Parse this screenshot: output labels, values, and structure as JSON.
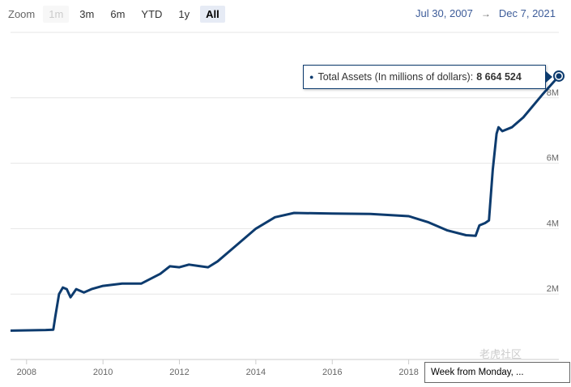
{
  "toolbar": {
    "zoom_label": "Zoom",
    "buttons": [
      {
        "label": "1m",
        "state": "disabled"
      },
      {
        "label": "3m",
        "state": "normal"
      },
      {
        "label": "6m",
        "state": "normal"
      },
      {
        "label": "YTD",
        "state": "normal"
      },
      {
        "label": "1y",
        "state": "normal"
      },
      {
        "label": "All",
        "state": "active"
      }
    ]
  },
  "range": {
    "from": "Jul 30, 2007",
    "arrow": "→",
    "to": "Dec 7, 2021"
  },
  "tooltip": {
    "series_label": "Total Assets (In millions of dollars):",
    "value": "8 664 524"
  },
  "week_box": {
    "text": "Week from Monday, ..."
  },
  "watermark": {
    "text": "老虎社区"
  },
  "colors": {
    "line": "#0d3b6e",
    "grid": "#e6e6e6",
    "range_text": "#3d5c99",
    "active_button": "#e6ebf5"
  },
  "chart_data": {
    "type": "line",
    "title": "",
    "xlabel": "",
    "ylabel": "",
    "x_ticks": [
      "2008",
      "2010",
      "2012",
      "2014",
      "2016",
      "2018"
    ],
    "y_ticks": [
      {
        "value": 2000000,
        "label": "2M"
      },
      {
        "value": 4000000,
        "label": "4M"
      },
      {
        "value": 6000000,
        "label": "6M"
      },
      {
        "value": 8000000,
        "label": "8M"
      }
    ],
    "xlim": [
      2007.58,
      2021.93
    ],
    "ylim": [
      0,
      10000000
    ],
    "grid": true,
    "series": [
      {
        "name": "Total Assets (In millions of dollars)",
        "points": [
          [
            2007.58,
            880000
          ],
          [
            2008.5,
            900000
          ],
          [
            2008.7,
            910000
          ],
          [
            2008.75,
            1300000
          ],
          [
            2008.85,
            2000000
          ],
          [
            2008.95,
            2200000
          ],
          [
            2009.05,
            2150000
          ],
          [
            2009.15,
            1900000
          ],
          [
            2009.3,
            2150000
          ],
          [
            2009.5,
            2050000
          ],
          [
            2009.7,
            2150000
          ],
          [
            2010.0,
            2250000
          ],
          [
            2010.5,
            2320000
          ],
          [
            2011.0,
            2320000
          ],
          [
            2011.5,
            2620000
          ],
          [
            2011.75,
            2850000
          ],
          [
            2012.0,
            2820000
          ],
          [
            2012.25,
            2900000
          ],
          [
            2012.5,
            2860000
          ],
          [
            2012.75,
            2820000
          ],
          [
            2013.0,
            3000000
          ],
          [
            2013.5,
            3500000
          ],
          [
            2014.0,
            4000000
          ],
          [
            2014.5,
            4350000
          ],
          [
            2015.0,
            4480000
          ],
          [
            2016.0,
            4460000
          ],
          [
            2017.0,
            4450000
          ],
          [
            2018.0,
            4380000
          ],
          [
            2018.5,
            4200000
          ],
          [
            2019.0,
            3950000
          ],
          [
            2019.5,
            3800000
          ],
          [
            2019.75,
            3780000
          ],
          [
            2019.85,
            4100000
          ],
          [
            2020.0,
            4170000
          ],
          [
            2020.1,
            4250000
          ],
          [
            2020.2,
            5800000
          ],
          [
            2020.3,
            6900000
          ],
          [
            2020.35,
            7100000
          ],
          [
            2020.45,
            6980000
          ],
          [
            2020.7,
            7100000
          ],
          [
            2021.0,
            7400000
          ],
          [
            2021.5,
            8100000
          ],
          [
            2021.93,
            8664524
          ]
        ]
      }
    ]
  }
}
